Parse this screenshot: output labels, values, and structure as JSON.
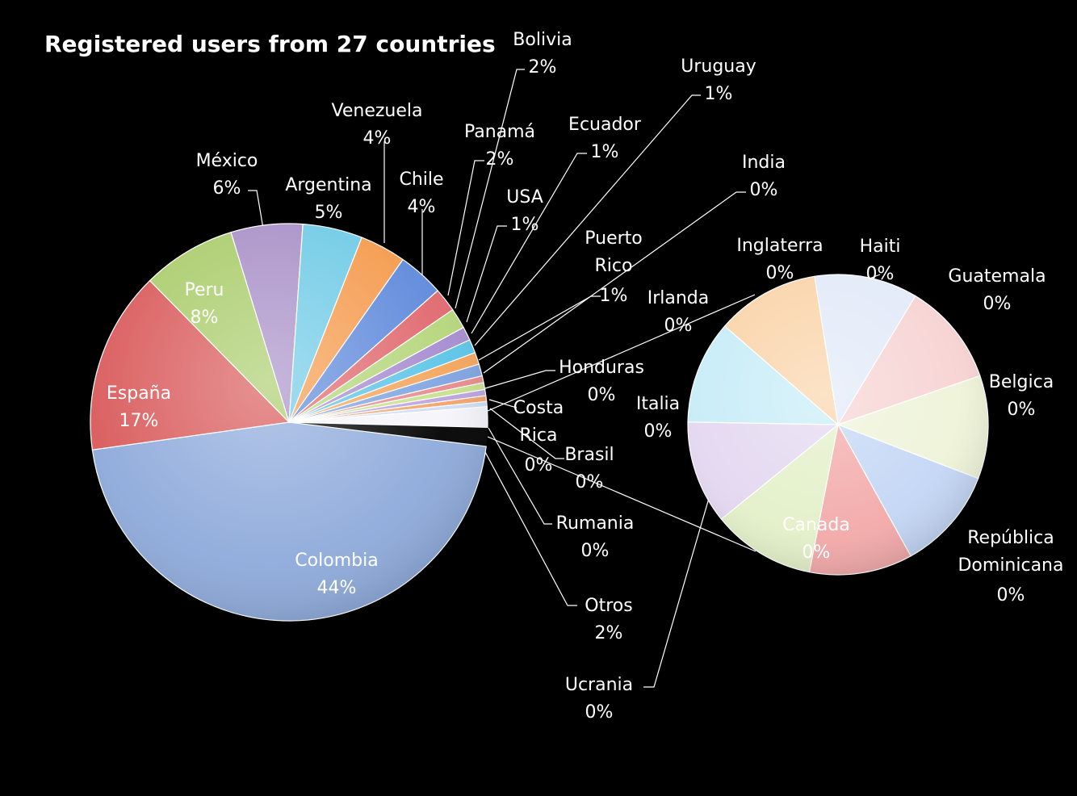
{
  "chart_data": {
    "type": "pie",
    "subtype": "pie-of-pie",
    "title": "Registered users from 27 countries",
    "main_slices": [
      {
        "label": "Colombia",
        "value": 44,
        "value_label": "44%",
        "color": "#8EAADB"
      },
      {
        "label": "España",
        "value": 17,
        "value_label": "17%",
        "color": "#D9595A"
      },
      {
        "label": "Peru",
        "value": 8,
        "value_label": "8%",
        "color": "#A9CC6A"
      },
      {
        "label": "México",
        "value": 6,
        "value_label": "6%",
        "color": "#A88FC7"
      },
      {
        "label": "Argentina",
        "value": 5,
        "value_label": "5%",
        "color": "#6FCAE6"
      },
      {
        "label": "Venezuela",
        "value": 4,
        "value_label": "4%",
        "color": "#F59A4C"
      },
      {
        "label": "Chile",
        "value": 4,
        "value_label": "4%",
        "color": "#5E89DB"
      },
      {
        "label": "Panamá",
        "value": 2,
        "value_label": "2%",
        "color": "#E0686E"
      },
      {
        "label": "Bolivia",
        "value": 2,
        "value_label": "2%",
        "color": "#B5D67A"
      },
      {
        "label": "USA",
        "value": 1,
        "value_label": "1%",
        "color": "#A68CD0"
      },
      {
        "label": "Ecuador",
        "value": 1,
        "value_label": "1%",
        "color": "#5CC4E8"
      },
      {
        "label": "Uruguay",
        "value": 1,
        "value_label": "1%",
        "color": "#F4A55B"
      },
      {
        "label": "Puerto Rico",
        "value": 1,
        "value_label": "1%",
        "color": "#7EA3E0"
      },
      {
        "label": "India",
        "value": 0,
        "value_label": "0%",
        "color": "#E78A8C"
      },
      {
        "label": "Honduras",
        "value": 0,
        "value_label": "0%",
        "color": "#C7E08C"
      },
      {
        "label": "Costa Rica",
        "value": 0,
        "value_label": "0%",
        "color": "#B9A3DC"
      },
      {
        "label": "Brasil",
        "value": 0,
        "value_label": "0%",
        "color": "#F2A36A"
      },
      {
        "label": "Rumania",
        "value": 0,
        "value_label": "0%",
        "color": "#CFDDF3"
      },
      {
        "label": "Otros",
        "value": 2,
        "value_label": "2%",
        "color": "#F4F4FA"
      }
    ],
    "secondary_slices": [
      {
        "label": "Haiti",
        "value": 0,
        "value_label": "0%",
        "color": "#E2EAF8"
      },
      {
        "label": "Guatemala",
        "value": 0,
        "value_label": "0%",
        "color": "#F7D3D3"
      },
      {
        "label": "Belgica",
        "value": 0,
        "value_label": "0%",
        "color": "#EEF3D8"
      },
      {
        "label": "República Dominicana",
        "value": 0,
        "value_label": "0%",
        "color": "#C3D6F5"
      },
      {
        "label": "Canada",
        "value": 0,
        "value_label": "0%",
        "color": "#F3A9A9"
      },
      {
        "label": "Ucrania",
        "value": 0,
        "value_label": "0%",
        "color": "#E3F0C8"
      },
      {
        "label": "Italia",
        "value": 0,
        "value_label": "0%",
        "color": "#E3D7F0"
      },
      {
        "label": "Irlanda",
        "value": 0,
        "value_label": "0%",
        "color": "#C6ECF7"
      },
      {
        "label": "Inglaterra",
        "value": 0,
        "value_label": "0%",
        "color": "#FAD3A8"
      }
    ]
  }
}
